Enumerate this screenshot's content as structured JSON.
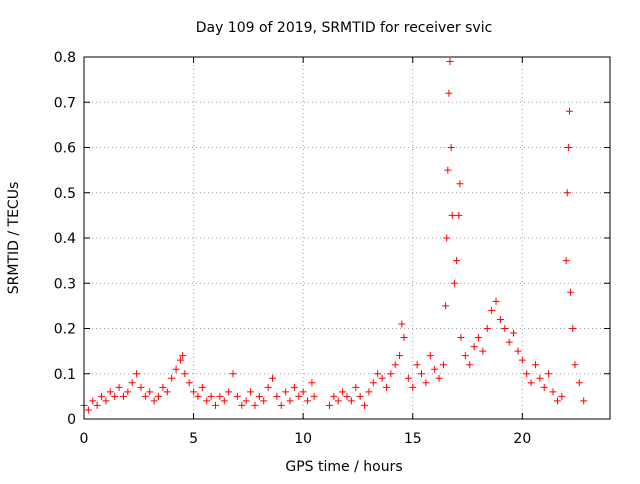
{
  "colors": {
    "points": "#ff0000",
    "axis": "#000000",
    "grid": "#a0a0a0",
    "background": "#ffffff"
  },
  "chart_data": {
    "type": "scatter",
    "title": "Day 109 of 2019, SRMTID for receiver svic",
    "xlabel": "GPS time / hours",
    "ylabel": "SRMTID / TECUs",
    "xlim": [
      0,
      24
    ],
    "ylim": [
      0,
      0.8
    ],
    "xticks": [
      0,
      5,
      10,
      15,
      20
    ],
    "xtick_labels": [
      "0",
      "5",
      "10",
      "15",
      "20"
    ],
    "yticks": [
      0,
      0.1,
      0.2,
      0.3,
      0.4,
      0.5,
      0.6,
      0.7,
      0.8
    ],
    "ytick_labels": [
      "0",
      "0.1",
      "0.2",
      "0.3",
      "0.4",
      "0.5",
      "0.6",
      "0.7",
      "0.8"
    ],
    "grid": true,
    "marker": "+",
    "series": [
      {
        "name": "SRMTID",
        "points": [
          [
            0.0,
            0.03
          ],
          [
            0.2,
            0.02
          ],
          [
            0.4,
            0.04
          ],
          [
            0.6,
            0.03
          ],
          [
            0.8,
            0.05
          ],
          [
            1.0,
            0.04
          ],
          [
            1.2,
            0.06
          ],
          [
            1.4,
            0.05
          ],
          [
            1.6,
            0.07
          ],
          [
            1.8,
            0.05
          ],
          [
            2.0,
            0.06
          ],
          [
            2.2,
            0.08
          ],
          [
            2.4,
            0.1
          ],
          [
            2.6,
            0.07
          ],
          [
            2.8,
            0.05
          ],
          [
            3.0,
            0.06
          ],
          [
            3.2,
            0.04
          ],
          [
            3.4,
            0.05
          ],
          [
            3.6,
            0.07
          ],
          [
            3.8,
            0.06
          ],
          [
            4.0,
            0.09
          ],
          [
            4.2,
            0.11
          ],
          [
            4.4,
            0.13
          ],
          [
            4.5,
            0.14
          ],
          [
            4.6,
            0.1
          ],
          [
            4.8,
            0.08
          ],
          [
            5.0,
            0.06
          ],
          [
            5.2,
            0.05
          ],
          [
            5.4,
            0.07
          ],
          [
            5.6,
            0.04
          ],
          [
            5.8,
            0.05
          ],
          [
            6.0,
            0.03
          ],
          [
            6.2,
            0.05
          ],
          [
            6.4,
            0.04
          ],
          [
            6.6,
            0.06
          ],
          [
            6.8,
            0.1
          ],
          [
            7.0,
            0.05
          ],
          [
            7.2,
            0.03
          ],
          [
            7.4,
            0.04
          ],
          [
            7.6,
            0.06
          ],
          [
            7.8,
            0.03
          ],
          [
            8.0,
            0.05
          ],
          [
            8.2,
            0.04
          ],
          [
            8.4,
            0.07
          ],
          [
            8.6,
            0.09
          ],
          [
            8.8,
            0.05
          ],
          [
            9.0,
            0.03
          ],
          [
            9.2,
            0.06
          ],
          [
            9.4,
            0.04
          ],
          [
            9.6,
            0.07
          ],
          [
            9.8,
            0.05
          ],
          [
            10.0,
            0.06
          ],
          [
            10.2,
            0.04
          ],
          [
            10.4,
            0.08
          ],
          [
            10.5,
            0.05
          ],
          [
            11.2,
            0.03
          ],
          [
            11.4,
            0.05
          ],
          [
            11.6,
            0.04
          ],
          [
            11.8,
            0.06
          ],
          [
            12.0,
            0.05
          ],
          [
            12.2,
            0.04
          ],
          [
            12.4,
            0.07
          ],
          [
            12.6,
            0.05
          ],
          [
            12.8,
            0.03
          ],
          [
            13.0,
            0.06
          ],
          [
            13.2,
            0.08
          ],
          [
            13.4,
            0.1
          ],
          [
            13.6,
            0.09
          ],
          [
            13.8,
            0.07
          ],
          [
            14.0,
            0.1
          ],
          [
            14.2,
            0.12
          ],
          [
            14.4,
            0.14
          ],
          [
            14.5,
            0.21
          ],
          [
            14.6,
            0.18
          ],
          [
            14.8,
            0.09
          ],
          [
            15.0,
            0.07
          ],
          [
            15.2,
            0.12
          ],
          [
            15.4,
            0.1
          ],
          [
            15.6,
            0.08
          ],
          [
            15.8,
            0.14
          ],
          [
            16.0,
            0.11
          ],
          [
            16.2,
            0.09
          ],
          [
            16.4,
            0.12
          ],
          [
            16.5,
            0.25
          ],
          [
            16.55,
            0.4
          ],
          [
            16.6,
            0.55
          ],
          [
            16.65,
            0.72
          ],
          [
            16.7,
            0.79
          ],
          [
            16.75,
            0.6
          ],
          [
            16.8,
            0.45
          ],
          [
            16.9,
            0.3
          ],
          [
            17.0,
            0.35
          ],
          [
            17.1,
            0.45
          ],
          [
            17.15,
            0.52
          ],
          [
            17.2,
            0.18
          ],
          [
            17.4,
            0.14
          ],
          [
            17.6,
            0.12
          ],
          [
            17.8,
            0.16
          ],
          [
            18.0,
            0.18
          ],
          [
            18.2,
            0.15
          ],
          [
            18.4,
            0.2
          ],
          [
            18.6,
            0.24
          ],
          [
            18.8,
            0.26
          ],
          [
            19.0,
            0.22
          ],
          [
            19.2,
            0.2
          ],
          [
            19.4,
            0.17
          ],
          [
            19.6,
            0.19
          ],
          [
            19.8,
            0.15
          ],
          [
            20.0,
            0.13
          ],
          [
            20.2,
            0.1
          ],
          [
            20.4,
            0.08
          ],
          [
            20.6,
            0.12
          ],
          [
            20.8,
            0.09
          ],
          [
            21.0,
            0.07
          ],
          [
            21.2,
            0.1
          ],
          [
            21.4,
            0.06
          ],
          [
            21.6,
            0.04
          ],
          [
            21.8,
            0.05
          ],
          [
            22.0,
            0.35
          ],
          [
            22.05,
            0.5
          ],
          [
            22.1,
            0.6
          ],
          [
            22.15,
            0.68
          ],
          [
            22.2,
            0.28
          ],
          [
            22.3,
            0.2
          ],
          [
            22.4,
            0.12
          ],
          [
            22.6,
            0.08
          ],
          [
            22.8,
            0.04
          ]
        ]
      }
    ]
  }
}
